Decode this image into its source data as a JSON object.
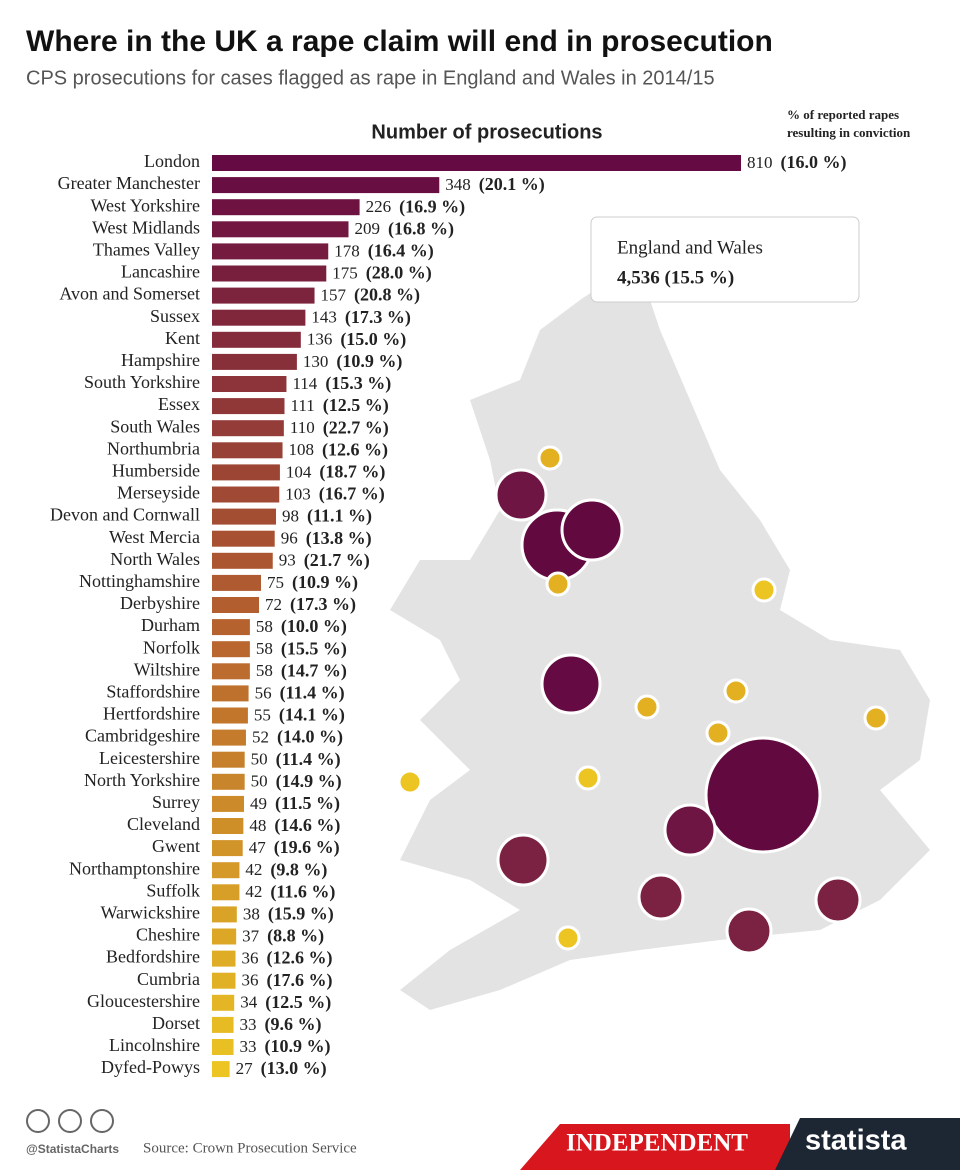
{
  "chart_data": {
    "type": "bar",
    "orientation": "horizontal",
    "title": "Where in the UK a rape claim will end in prosecution",
    "subtitle": "CPS prosecutions for cases flagged as rape in England and Wales in 2014/15",
    "categories": [
      "London",
      "Greater Manchester",
      "West Yorkshire",
      "West Midlands",
      "Thames Valley",
      "Lancashire",
      "Avon and Somerset",
      "Sussex",
      "Kent",
      "Hampshire",
      "South Yorkshire",
      "Essex",
      "South Wales",
      "Northumbria",
      "Humberside",
      "Merseyside",
      "Devon and Cornwall",
      "West Mercia",
      "North Wales",
      "Nottinghamshire",
      "Derbyshire",
      "Durham",
      "Norfolk",
      "Wiltshire",
      "Staffordshire",
      "Hertfordshire",
      "Cambridgeshire",
      "Leicestershire",
      "North Yorkshire",
      "Surrey",
      "Cleveland",
      "Gwent",
      "Northamptonshire",
      "Suffolk",
      "Warwickshire",
      "Cheshire",
      "Bedfordshire",
      "Cumbria",
      "Gloucestershire",
      "Dorset",
      "Lincolnshire",
      "Dyfed-Powys"
    ],
    "series": [
      {
        "name": "Number of prosecutions",
        "color_range": [
          "#650a43",
          "#b5602f",
          "#ecc523"
        ],
        "values": [
          810,
          348,
          226,
          209,
          178,
          175,
          157,
          143,
          136,
          130,
          114,
          111,
          110,
          108,
          104,
          103,
          98,
          96,
          93,
          75,
          72,
          58,
          58,
          58,
          56,
          55,
          52,
          50,
          50,
          49,
          48,
          47,
          42,
          42,
          38,
          37,
          36,
          36,
          34,
          33,
          33,
          27
        ]
      },
      {
        "name": "% of reported rapes resulting in conviction",
        "values": [
          16.0,
          20.1,
          16.9,
          16.8,
          16.4,
          28.0,
          20.8,
          17.3,
          15.0,
          10.9,
          15.3,
          12.5,
          22.7,
          12.6,
          18.7,
          16.7,
          11.1,
          13.8,
          21.7,
          10.9,
          17.3,
          10.0,
          15.5,
          14.7,
          11.4,
          14.1,
          14.0,
          11.4,
          14.9,
          11.5,
          14.6,
          19.6,
          9.8,
          11.6,
          15.9,
          8.8,
          12.6,
          17.6,
          12.5,
          9.6,
          10.9,
          13.0
        ],
        "value_labels": [
          "(16.0 %)",
          "(20.1 %)",
          "(16.9 %)",
          "(16.8 %)",
          "(16.4 %)",
          "(28.0 %)",
          "(20.8 %)",
          "(17.3 %)",
          "(15.0 %)",
          "(10.9 %)",
          "(15.3 %)",
          "(12.5 %)",
          "(22.7 %)",
          "(12.6 %)",
          "(18.7 %)",
          "(16.7 %)",
          "(11.1 %)",
          "(13.8 %)",
          "(21.7 %)",
          "(10.9 %)",
          "(17.3 %)",
          "(10.0 %)",
          "(15.5 %)",
          "(14.7 %)",
          "(11.4 %)",
          "(14.1 %)",
          "(14.0 %)",
          "(11.4 %)",
          "(14.9 %)",
          "(11.5 %)",
          "(14.6 %)",
          "(19.6 %)",
          "(9.8 %)",
          "(11.6 %)",
          "(15.9 %)",
          "(8.8 %)",
          "(12.6 %)",
          "(17.6 %)",
          "(12.5 %)",
          "(9.6 %)",
          "(10.9 %)",
          "(13.0 %)"
        ]
      }
    ],
    "annotation": {
      "title": "England and Wales",
      "text": "4,536 (15.5 %)"
    }
  },
  "footer": {
    "handle": "@StatistaCharts",
    "source": "Source: Crown Prosecution Service",
    "partner": "INDEPENDENT",
    "brand": "statista"
  }
}
